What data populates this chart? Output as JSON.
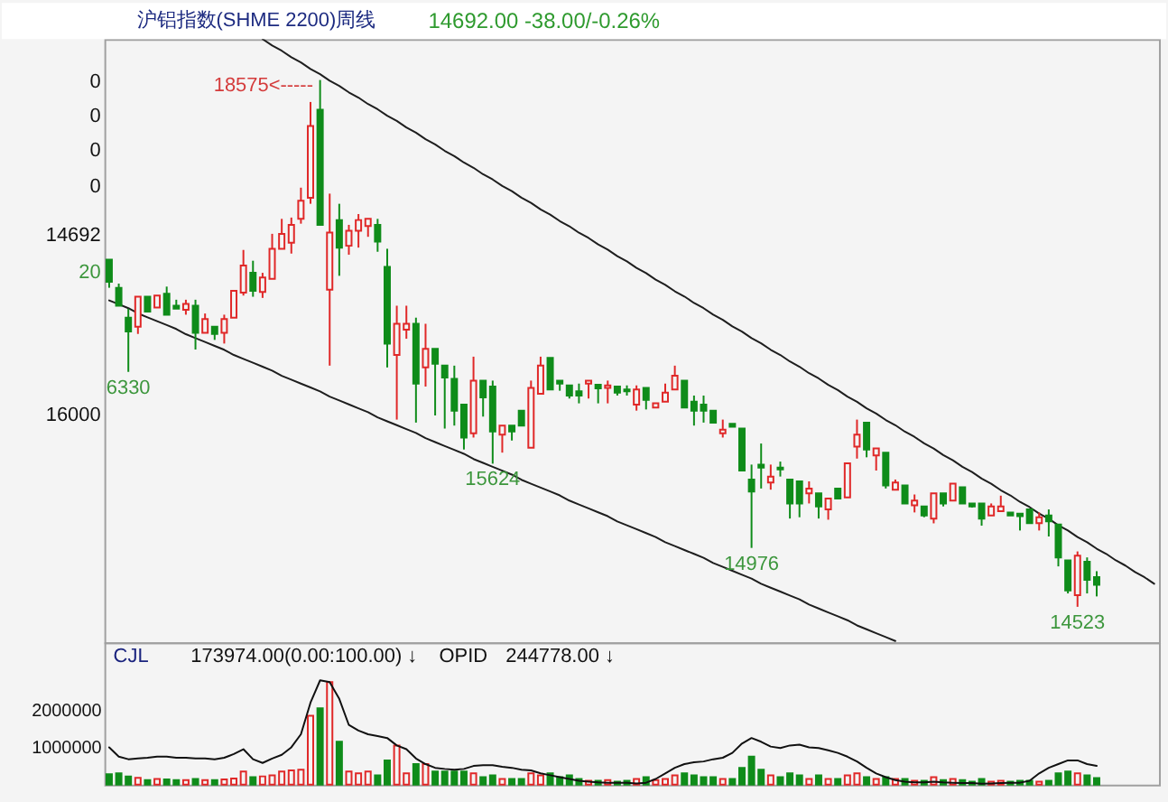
{
  "chart_data": [
    {
      "type": "candlestick",
      "title": "沪铝指数(SHME 2200)周线",
      "subtitle": "14692.00 -38.00/-0.26%",
      "categories": [
        null,
        null,
        null,
        null,
        null,
        null,
        null,
        null,
        null,
        null,
        null,
        null,
        null,
        null,
        null,
        null,
        null,
        null,
        null,
        null,
        null,
        null,
        null,
        null,
        null,
        null,
        null,
        null,
        null,
        null,
        null,
        null,
        null,
        null,
        null,
        null,
        null,
        null,
        null,
        null,
        null,
        null,
        null,
        null,
        null,
        null,
        null,
        null,
        null,
        null,
        null,
        null,
        null,
        null,
        null,
        null,
        null,
        null,
        null,
        null,
        null,
        null,
        null,
        null,
        null,
        null,
        null,
        null,
        null,
        null,
        null,
        null,
        null,
        null,
        null,
        null,
        null,
        null,
        null,
        null,
        null,
        null,
        null,
        null,
        null,
        null,
        null,
        null,
        null,
        null,
        null,
        null,
        null,
        null,
        null,
        null,
        null,
        null,
        null,
        null,
        null,
        null,
        null,
        null,
        null,
        null,
        null,
        null,
        null,
        null
      ],
      "ohlc": [
        [
          17193,
          17193,
          16977,
          17023
        ],
        [
          16977,
          17009,
          16839,
          16839
        ],
        [
          16747,
          16816,
          16330,
          16641
        ],
        [
          16677,
          16908,
          16622,
          16908
        ],
        [
          16908,
          16908,
          16793,
          16793
        ],
        [
          16825,
          16917,
          16825,
          16917
        ],
        [
          16931,
          16986,
          16770,
          16770
        ],
        [
          16839,
          16885,
          16816,
          16816
        ],
        [
          16807,
          16885,
          16770,
          16853
        ],
        [
          16839,
          16885,
          16502,
          16631
        ],
        [
          16631,
          16779,
          16631,
          16737
        ],
        [
          16677,
          16677,
          16576,
          16622
        ],
        [
          16631,
          16770,
          16548,
          16737
        ],
        [
          16747,
          16954,
          16747,
          16954
        ],
        [
          16940,
          17268,
          16917,
          17148
        ],
        [
          17092,
          17185,
          16908,
          16954
        ],
        [
          16945,
          17092,
          16899,
          17056
        ],
        [
          17046,
          17392,
          17046,
          17277
        ],
        [
          17277,
          17507,
          17277,
          17392
        ],
        [
          17323,
          17517,
          17240,
          17461
        ],
        [
          17507,
          17747,
          17470,
          17646
        ],
        [
          17669,
          18406,
          17623,
          18222
        ],
        [
          18346,
          18575,
          17461,
          17461
        ],
        [
          16963,
          17701,
          16378,
          17401
        ],
        [
          17498,
          17623,
          17069,
          17286
        ],
        [
          17300,
          17461,
          17231,
          17415
        ],
        [
          17415,
          17544,
          17286,
          17498
        ],
        [
          17452,
          17507,
          17369,
          17507
        ],
        [
          17461,
          17507,
          17254,
          17332
        ],
        [
          17138,
          17277,
          16364,
          16548
        ],
        [
          16461,
          16839,
          15963,
          16700
        ],
        [
          16654,
          16839,
          16585,
          16700
        ],
        [
          16700,
          16747,
          15940,
          16240
        ],
        [
          16364,
          16700,
          16217,
          16507
        ],
        [
          16507,
          16507,
          15995,
          16392
        ],
        [
          16378,
          16378,
          15894,
          16286
        ],
        [
          16277,
          16378,
          15917,
          16032
        ],
        [
          16078,
          16078,
          15733,
          15825
        ],
        [
          15857,
          16447,
          15825,
          16263
        ],
        [
          16263,
          16263,
          15986,
          16134
        ],
        [
          16217,
          16263,
          15624,
          15871
        ],
        [
          15848,
          15917,
          15709,
          15917
        ],
        [
          15917,
          15917,
          15802,
          15871
        ],
        [
          16032,
          16032,
          15917,
          15917
        ],
        [
          15746,
          16263,
          15746,
          16207
        ],
        [
          16161,
          16447,
          16161,
          16378
        ],
        [
          16438,
          16438,
          16194,
          16194
        ],
        [
          16263,
          16263,
          16185,
          16240
        ],
        [
          16226,
          16226,
          16125,
          16148
        ],
        [
          16180,
          16240,
          16088,
          16148
        ],
        [
          16240,
          16263,
          16125,
          16263
        ],
        [
          16231,
          16231,
          16088,
          16203
        ],
        [
          16207,
          16263,
          16088,
          16226
        ],
        [
          16217,
          16217,
          16148,
          16171
        ],
        [
          16194,
          16226,
          16148,
          16180
        ],
        [
          16078,
          16226,
          16032,
          16194
        ],
        [
          16207,
          16207,
          16041,
          16115
        ],
        [
          16055,
          16088,
          16055,
          16088
        ],
        [
          16101,
          16240,
          16101,
          16171
        ],
        [
          16194,
          16378,
          16194,
          16300
        ],
        [
          16263,
          16263,
          16055,
          16055
        ],
        [
          16101,
          16148,
          15917,
          16032
        ],
        [
          16078,
          16148,
          15940,
          16032
        ],
        [
          16032,
          16032,
          15940,
          15940
        ],
        [
          15857,
          15963,
          15825,
          15885
        ],
        [
          15931,
          15931,
          15908,
          15908
        ],
        [
          15894,
          15894,
          15571,
          15571
        ],
        [
          15502,
          15617,
          14976,
          15410
        ],
        [
          15617,
          15779,
          15433,
          15594
        ],
        [
          15479,
          15617,
          15424,
          15525
        ],
        [
          15594,
          15640,
          15525,
          15580
        ],
        [
          15502,
          15502,
          15202,
          15318
        ],
        [
          15488,
          15488,
          15212,
          15318
        ],
        [
          15396,
          15488,
          15318,
          15433
        ],
        [
          15396,
          15396,
          15202,
          15295
        ],
        [
          15272,
          15355,
          15193,
          15355
        ],
        [
          15433,
          15433,
          15355,
          15355
        ],
        [
          15364,
          15627,
          15364,
          15627
        ],
        [
          15756,
          15963,
          15663,
          15848
        ],
        [
          15940,
          15940,
          15673,
          15733
        ],
        [
          15687,
          15742,
          15571,
          15742
        ],
        [
          15709,
          15709,
          15433,
          15456
        ],
        [
          15424,
          15502,
          15424,
          15479
        ],
        [
          15456,
          15456,
          15318,
          15318
        ],
        [
          15304,
          15387,
          15249,
          15341
        ],
        [
          15295,
          15295,
          15212,
          15226
        ],
        [
          15202,
          15396,
          15165,
          15396
        ],
        [
          15396,
          15396,
          15295,
          15318
        ],
        [
          15341,
          15470,
          15341,
          15470
        ],
        [
          15442,
          15442,
          15318,
          15318
        ],
        [
          15318,
          15318,
          15286,
          15295
        ],
        [
          15318,
          15318,
          15147,
          15202
        ],
        [
          15226,
          15318,
          15226,
          15295
        ],
        [
          15258,
          15378,
          15258,
          15295
        ],
        [
          15249,
          15249,
          15226,
          15226
        ],
        [
          15240,
          15240,
          15110,
          15221
        ],
        [
          15272,
          15272,
          15166,
          15166
        ],
        [
          15166,
          15249,
          15110,
          15212
        ],
        [
          15226,
          15272,
          15064,
          15180
        ],
        [
          15156,
          15156,
          14834,
          14903
        ],
        [
          14880,
          14880,
          14626,
          14649
        ],
        [
          14612,
          14949,
          14523,
          14917
        ],
        [
          14870,
          14903,
          14626,
          14730
        ],
        [
          14751,
          14797,
          14603,
          14692
        ],
        null,
        null,
        null,
        null,
        null,
        null
      ],
      "colors": [
        "#0f8c1a",
        "#0f8c1a",
        "#0f8c1a",
        "#e02828",
        "#0f8c1a",
        "#e02828",
        "#0f8c1a",
        "#0f8c1a",
        "#e02828",
        "#0f8c1a",
        "#e02828",
        "#0f8c1a",
        "#e02828",
        "#e02828",
        "#e02828",
        "#0f8c1a",
        "#e02828",
        "#e02828",
        "#e02828",
        "#e02828",
        "#e02828",
        "#e02828",
        "#0f8c1a",
        "#e02828",
        "#0f8c1a",
        "#e02828",
        "#e02828",
        "#e02828",
        "#0f8c1a",
        "#0f8c1a",
        "#e02828",
        "#e02828",
        "#0f8c1a",
        "#e02828",
        "#0f8c1a",
        "#0f8c1a",
        "#0f8c1a",
        "#0f8c1a",
        "#e02828",
        "#0f8c1a",
        "#0f8c1a",
        "#e02828",
        "#0f8c1a",
        "#0f8c1a",
        "#e02828",
        "#e02828",
        "#0f8c1a",
        "#0f8c1a",
        "#0f8c1a",
        "#0f8c1a",
        "#e02828",
        "#0f8c1a",
        "#e02828",
        "#0f8c1a",
        "#0f8c1a",
        "#e02828",
        "#0f8c1a",
        "#e02828",
        "#e02828",
        "#e02828",
        "#0f8c1a",
        "#0f8c1a",
        "#0f8c1a",
        "#0f8c1a",
        "#e02828",
        "#0f8c1a",
        "#0f8c1a",
        "#0f8c1a",
        "#0f8c1a",
        "#e02828",
        "#0f8c1a",
        "#0f8c1a",
        "#0f8c1a",
        "#e02828",
        "#0f8c1a",
        "#e02828",
        "#0f8c1a",
        "#e02828",
        "#e02828",
        "#0f8c1a",
        "#e02828",
        "#0f8c1a",
        "#e02828",
        "#0f8c1a",
        "#e02828",
        "#0f8c1a",
        "#e02828",
        "#0f8c1a",
        "#e02828",
        "#0f8c1a",
        "#0f8c1a",
        "#0f8c1a",
        "#e02828",
        "#e02828",
        "#0f8c1a",
        "#0f8c1a",
        "#0f8c1a",
        "#e02828",
        "#0f8c1a",
        "#0f8c1a",
        "#0f8c1a",
        "#e02828",
        "#0f8c1a",
        "#0f8c1a",
        null,
        null,
        null,
        null,
        null,
        null
      ],
      "series": [
        {
          "type": "line",
          "color": "#1e1e1e",
          "values": [
            null,
            null,
            null,
            null,
            null,
            null,
            null,
            null,
            null,
            null,
            null,
            null,
            null,
            null,
            null,
            null,
            18890,
            18840,
            18800,
            18750,
            18710,
            18660,
            18620,
            18570,
            18530,
            18480,
            18440,
            18390,
            18350,
            18300,
            18260,
            18210,
            18170,
            18120,
            18080,
            18030,
            17990,
            17940,
            17900,
            17850,
            17810,
            17760,
            17720,
            17670,
            17630,
            17580,
            17540,
            17490,
            17450,
            17400,
            17360,
            17310,
            17270,
            17220,
            17180,
            17130,
            17090,
            17040,
            17000,
            16950,
            16910,
            16860,
            16820,
            16770,
            16730,
            16680,
            16640,
            16590,
            16550,
            16500,
            16460,
            16410,
            16370,
            16320,
            16280,
            16230,
            16190,
            16140,
            16100,
            16050,
            16010,
            15960,
            15920,
            15870,
            15830,
            15780,
            15740,
            15690,
            15650,
            15600,
            15560,
            15510,
            15470,
            15420,
            15380,
            15330,
            15290,
            15240,
            15200,
            15150,
            15110,
            15060,
            15020,
            14970,
            14930,
            14880,
            14840,
            14790,
            14750,
            14700
          ]
        },
        {
          "type": "line",
          "color": "#1e1e1e",
          "values": [
            16880,
            16850,
            16820,
            16780,
            16750,
            16720,
            16690,
            16660,
            16620,
            16590,
            16560,
            16530,
            16500,
            16460,
            16430,
            16400,
            16370,
            16340,
            16300,
            16270,
            16240,
            16210,
            16180,
            16140,
            16110,
            16080,
            16050,
            16020,
            15980,
            15950,
            15920,
            15890,
            15860,
            15820,
            15790,
            15760,
            15730,
            15700,
            15660,
            15630,
            15600,
            15570,
            15540,
            15500,
            15470,
            15440,
            15410,
            15380,
            15340,
            15310,
            15280,
            15250,
            15220,
            15180,
            15150,
            15120,
            15090,
            15060,
            15020,
            14990,
            14960,
            14930,
            14900,
            14860,
            14830,
            14800,
            14770,
            14740,
            14700,
            14670,
            14640,
            14610,
            14580,
            14540,
            14510,
            14480,
            14450,
            14420,
            14380,
            14350,
            14320,
            14290,
            14260,
            null,
            null,
            null,
            null,
            null,
            null,
            null,
            null,
            null,
            null,
            null,
            null,
            null,
            null,
            null,
            null,
            null,
            null,
            null,
            null,
            null,
            null,
            null,
            null,
            null,
            null,
            null
          ]
        }
      ],
      "ylim": [
        14250,
        18890
      ],
      "tick_labels": "y",
      "annotations": [
        "0",
        "0",
        "0",
        "0",
        "14692",
        "20",
        "16000",
        "18575<-----",
        {
          "text": "6330",
          "y": 16330
        },
        {
          "text": "15624",
          "y": 15624
        },
        {
          "text": "14976",
          "y": 14976
        },
        {
          "text": "14523",
          "y": 14523
        }
      ]
    },
    {
      "type": "bar",
      "categories": [
        null,
        null,
        null,
        null,
        null,
        null,
        null,
        null,
        null,
        null,
        null,
        null,
        null,
        null,
        null,
        null,
        null,
        null,
        null,
        null,
        null,
        null,
        null,
        null,
        null,
        null,
        null,
        null,
        null,
        null,
        null,
        null,
        null,
        null,
        null,
        null,
        null,
        null,
        null,
        null,
        null,
        null,
        null,
        null,
        null,
        null,
        null,
        null,
        null,
        null,
        null,
        null,
        null,
        null,
        null,
        null,
        null,
        null,
        null,
        null,
        null,
        null,
        null,
        null,
        null,
        null,
        null,
        null,
        null,
        null,
        null,
        null,
        null,
        null,
        null,
        null,
        null,
        null,
        null,
        null,
        null,
        null,
        null,
        null,
        null,
        null,
        null,
        null,
        null,
        null,
        null,
        null,
        null,
        null,
        null,
        null,
        null,
        null,
        null,
        null,
        null,
        null,
        null,
        null,
        null,
        null,
        null,
        null,
        null,
        null
      ],
      "series": [
        {
          "type": "bar",
          "values": [
            280000,
            300000,
            220000,
            180000,
            120000,
            150000,
            140000,
            120000,
            120000,
            150000,
            120000,
            120000,
            140000,
            160000,
            350000,
            200000,
            220000,
            250000,
            350000,
            380000,
            400000,
            1850000,
            2050000,
            2750000,
            1150000,
            350000,
            300000,
            350000,
            250000,
            650000,
            1050000,
            300000,
            550000,
            550000,
            350000,
            350000,
            350000,
            350000,
            300000,
            200000,
            250000,
            150000,
            150000,
            150000,
            300000,
            250000,
            300000,
            200000,
            250000,
            150000,
            100000,
            100000,
            120000,
            80000,
            100000,
            150000,
            200000,
            120000,
            150000,
            250000,
            300000,
            250000,
            200000,
            200000,
            150000,
            150000,
            450000,
            750000,
            400000,
            250000,
            200000,
            300000,
            250000,
            150000,
            250000,
            150000,
            150000,
            250000,
            300000,
            200000,
            150000,
            200000,
            150000,
            150000,
            100000,
            100000,
            200000,
            120000,
            150000,
            120000,
            80000,
            150000,
            80000,
            100000,
            80000,
            100000,
            100000,
            80000,
            100000,
            300000,
            350000,
            300000,
            250000,
            173974,
            null,
            null,
            null,
            null,
            null,
            null
          ],
          "colors": [
            "#0f8c1a",
            "#0f8c1a",
            "#0f8c1a",
            "#e02828",
            "#0f8c1a",
            "#e02828",
            "#0f8c1a",
            "#0f8c1a",
            "#e02828",
            "#0f8c1a",
            "#e02828",
            "#0f8c1a",
            "#e02828",
            "#e02828",
            "#e02828",
            "#0f8c1a",
            "#e02828",
            "#e02828",
            "#e02828",
            "#e02828",
            "#e02828",
            "#e02828",
            "#0f8c1a",
            "#e02828",
            "#0f8c1a",
            "#e02828",
            "#e02828",
            "#e02828",
            "#0f8c1a",
            "#0f8c1a",
            "#e02828",
            "#e02828",
            "#0f8c1a",
            "#e02828",
            "#0f8c1a",
            "#0f8c1a",
            "#0f8c1a",
            "#0f8c1a",
            "#e02828",
            "#0f8c1a",
            "#0f8c1a",
            "#e02828",
            "#0f8c1a",
            "#0f8c1a",
            "#e02828",
            "#e02828",
            "#0f8c1a",
            "#0f8c1a",
            "#0f8c1a",
            "#0f8c1a",
            "#e02828",
            "#0f8c1a",
            "#e02828",
            "#0f8c1a",
            "#0f8c1a",
            "#e02828",
            "#0f8c1a",
            "#e02828",
            "#e02828",
            "#e02828",
            "#0f8c1a",
            "#0f8c1a",
            "#0f8c1a",
            "#0f8c1a",
            "#e02828",
            "#0f8c1a",
            "#0f8c1a",
            "#0f8c1a",
            "#0f8c1a",
            "#e02828",
            "#0f8c1a",
            "#0f8c1a",
            "#0f8c1a",
            "#e02828",
            "#0f8c1a",
            "#e02828",
            "#0f8c1a",
            "#e02828",
            "#e02828",
            "#0f8c1a",
            "#e02828",
            "#0f8c1a",
            "#e02828",
            "#0f8c1a",
            "#e02828",
            "#0f8c1a",
            "#e02828",
            "#0f8c1a",
            "#e02828",
            "#0f8c1a",
            "#0f8c1a",
            "#0f8c1a",
            "#e02828",
            "#e02828",
            "#0f8c1a",
            "#0f8c1a",
            "#0f8c1a",
            "#e02828",
            "#0f8c1a",
            "#0f8c1a",
            "#0f8c1a",
            "#e02828",
            "#0f8c1a",
            "#0f8c1a",
            null,
            null,
            null,
            null,
            null,
            null
          ]
        },
        {
          "type": "line",
          "color": "#111111",
          "values": [
            1000000,
            750000,
            680000,
            700000,
            720000,
            750000,
            750000,
            720000,
            720000,
            700000,
            700000,
            680000,
            720000,
            820000,
            950000,
            680000,
            580000,
            700000,
            800000,
            1000000,
            1350000,
            2200000,
            2800000,
            2750000,
            2300000,
            1600000,
            1450000,
            1350000,
            1300000,
            1250000,
            1050000,
            950000,
            700000,
            550000,
            450000,
            420000,
            400000,
            420000,
            500000,
            520000,
            520000,
            480000,
            450000,
            400000,
            380000,
            300000,
            250000,
            200000,
            150000,
            100000,
            80000,
            60000,
            50000,
            50000,
            50000,
            30000,
            50000,
            150000,
            300000,
            450000,
            550000,
            600000,
            620000,
            680000,
            720000,
            850000,
            1100000,
            1250000,
            1150000,
            1020000,
            980000,
            1050000,
            1070000,
            1000000,
            980000,
            920000,
            850000,
            750000,
            620000,
            450000,
            300000,
            200000,
            120000,
            80000,
            60000,
            60000,
            80000,
            60000,
            50000,
            40000,
            40000,
            20000,
            30000,
            40000,
            50000,
            50000,
            100000,
            300000,
            450000,
            550000,
            650000,
            650000,
            550000,
            500000,
            null,
            null,
            null,
            null,
            null,
            null
          ]
        }
      ],
      "ylim": [
        0,
        3820000
      ],
      "yticks": [
        1000000,
        2000000
      ],
      "tick_labels": "y",
      "annotations": [
        "CJL",
        "173974.00(0.00:100.00) ↓",
        "OPID",
        "244778.00 ↓"
      ]
    }
  ]
}
